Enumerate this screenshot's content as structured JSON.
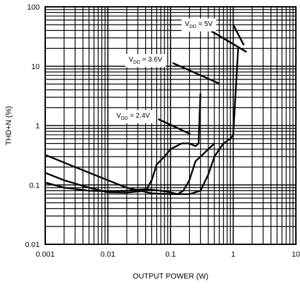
{
  "chart_data": {
    "type": "line",
    "title": "",
    "xlabel": "OUTPUT POWER (W)",
    "ylabel": "THD+N (%)",
    "x_scale": "log",
    "y_scale": "log",
    "xlim": [
      0.001,
      10
    ],
    "ylim": [
      0.01,
      100
    ],
    "grid": true,
    "x_ticks": [
      "0.001",
      "0.01",
      "0.1",
      "1",
      "10"
    ],
    "y_ticks": [
      "0.01",
      "0.1",
      "1",
      "10",
      "100"
    ],
    "series": [
      {
        "name": "VDD = 2.4V",
        "label_main": "V",
        "label_sub": "DD",
        "label_rest": " = 2.4V",
        "x": [
          0.001,
          0.002,
          0.005,
          0.01,
          0.02,
          0.04,
          0.07,
          0.1,
          0.13,
          0.16,
          0.2,
          0.25,
          0.3,
          0.35,
          0.4,
          0.5
        ],
        "y": [
          0.11,
          0.09,
          0.08,
          0.078,
          0.08,
          0.085,
          0.08,
          0.075,
          0.07,
          0.08,
          0.12,
          0.25,
          0.3,
          0.35,
          0.4,
          0.5
        ]
      },
      {
        "name": "VDD = 3.6V",
        "label_main": "V",
        "label_sub": "DD",
        "label_rest": " = 3.6V",
        "x": [
          0.001,
          0.002,
          0.005,
          0.01,
          0.02,
          0.04,
          0.05,
          0.06,
          0.08,
          0.1,
          0.15,
          0.2,
          0.25,
          0.28,
          0.3
        ],
        "y": [
          0.16,
          0.12,
          0.09,
          0.075,
          0.074,
          0.08,
          0.12,
          0.22,
          0.3,
          0.4,
          0.5,
          0.5,
          0.45,
          0.5,
          3.5
        ]
      },
      {
        "name": "VDD = 5V",
        "label_main": "V",
        "label_sub": "DD",
        "label_rest": " = 5V",
        "x": [
          0.001,
          0.003,
          0.01,
          0.02,
          0.05,
          0.1,
          0.2,
          0.3,
          0.4,
          0.5,
          0.6,
          0.7,
          0.8,
          0.9,
          1.0,
          1.2
        ],
        "y": [
          0.32,
          0.2,
          0.12,
          0.09,
          0.072,
          0.07,
          0.07,
          0.08,
          0.15,
          0.3,
          0.4,
          0.5,
          0.55,
          0.6,
          0.7,
          20
        ]
      }
    ],
    "annotations": [
      {
        "series": "VDD = 5V",
        "text_main": "V",
        "text_sub": "DD",
        "text_rest": " = 5V"
      },
      {
        "series": "VDD = 3.6V",
        "text_main": "V",
        "text_sub": "DD",
        "text_rest": " = 3.6V"
      },
      {
        "series": "VDD = 2.4V",
        "text_main": "V",
        "text_sub": "DD",
        "text_rest": " = 2.4V"
      }
    ]
  }
}
